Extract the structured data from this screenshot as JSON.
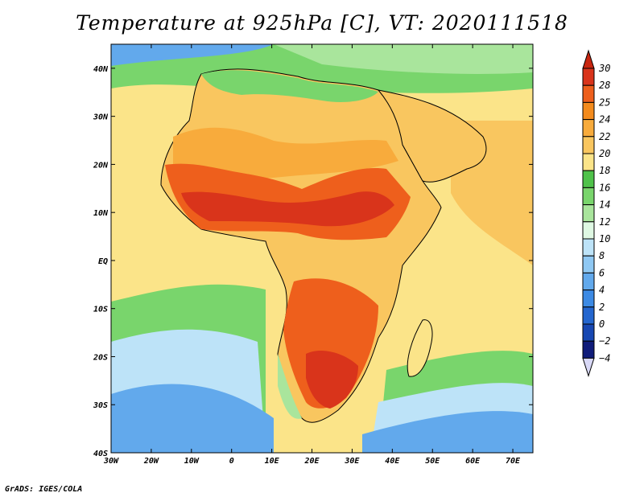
{
  "title": "Temperature at 925hPa [C], VT: 2020111518",
  "footer": "GrADS: IGES/COLA",
  "map": {
    "lon_range": [
      -30,
      75
    ],
    "lat_range": [
      -40,
      45
    ],
    "x_ticks": [
      {
        "value": -30,
        "label": "30W"
      },
      {
        "value": -20,
        "label": "20W"
      },
      {
        "value": -10,
        "label": "10W"
      },
      {
        "value": 0,
        "label": "0"
      },
      {
        "value": 10,
        "label": "10E"
      },
      {
        "value": 20,
        "label": "20E"
      },
      {
        "value": 30,
        "label": "30E"
      },
      {
        "value": 40,
        "label": "40E"
      },
      {
        "value": 50,
        "label": "50E"
      },
      {
        "value": 60,
        "label": "60E"
      },
      {
        "value": 70,
        "label": "70E"
      }
    ],
    "y_ticks": [
      {
        "value": 40,
        "label": "40N"
      },
      {
        "value": 30,
        "label": "30N"
      },
      {
        "value": 20,
        "label": "20N"
      },
      {
        "value": 10,
        "label": "10N"
      },
      {
        "value": 0,
        "label": "EQ"
      },
      {
        "value": -10,
        "label": "10S"
      },
      {
        "value": -20,
        "label": "20S"
      },
      {
        "value": -30,
        "label": "30S"
      },
      {
        "value": -40,
        "label": "40S"
      }
    ]
  },
  "colorbar": {
    "levels": [
      "30",
      "28",
      "25",
      "24",
      "22",
      "20",
      "18",
      "16",
      "14",
      "12",
      "10",
      "8",
      "6",
      "4",
      "2",
      "0",
      "−2",
      "−4"
    ],
    "colors": [
      "#d9341b",
      "#ee5f1c",
      "#f38b1d",
      "#f8ab3c",
      "#f9c65f",
      "#fbe489",
      "#4fc24a",
      "#79d56c",
      "#a9e59c",
      "#dff8e3",
      "#bde3f8",
      "#8fc8f3",
      "#62a9ec",
      "#3c8ae4",
      "#2466cf",
      "#1747b2",
      "#101c7a",
      "#d8d8f6"
    ],
    "top_color": "#c8250f",
    "bottom_color": "#d8d8f6"
  }
}
